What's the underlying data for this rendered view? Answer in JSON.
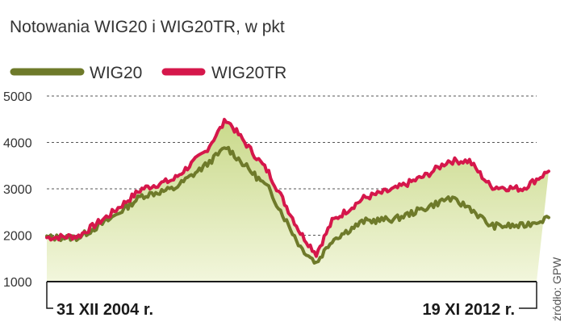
{
  "colors": {
    "wig20": "#6e7a2a",
    "wig20tr": "#d5174b",
    "area_top": "#c9d98a",
    "area_bottom": "#f2f6dc",
    "grid": "#555555"
  },
  "chart_data": {
    "type": "line",
    "title": "Notowania WIG20 i WIG20TR, w pkt",
    "xlabel": "",
    "ylabel": "",
    "ylim": [
      1000,
      5000
    ],
    "yticks": [
      5000,
      4000,
      3000,
      2000,
      1000
    ],
    "grid": true,
    "legend_position": "top-left",
    "x_start_label": "31 XII 2004 r.",
    "x_end_label": "19 XI 2012 r.",
    "source": "źródło: GPW",
    "x": [
      "2004-12",
      "2005-06",
      "2005-12",
      "2006-06",
      "2006-12",
      "2007-06",
      "2007-10",
      "2008-06",
      "2008-12",
      "2009-03",
      "2009-06",
      "2009-12",
      "2010-06",
      "2010-12",
      "2011-04",
      "2011-08",
      "2011-12",
      "2012-06",
      "2012-11"
    ],
    "series": [
      {
        "name": "WIG20",
        "values": [
          1950,
          1950,
          2350,
          2850,
          3000,
          3500,
          3900,
          3000,
          1750,
          1400,
          1900,
          2300,
          2350,
          2600,
          2800,
          2600,
          2200,
          2200,
          2380
        ]
      },
      {
        "name": "WIG20TR",
        "values": [
          1950,
          1980,
          2450,
          3000,
          3200,
          3800,
          4500,
          3350,
          2050,
          1600,
          2300,
          2800,
          3000,
          3300,
          3600,
          3600,
          3050,
          3000,
          3380
        ]
      }
    ]
  }
}
